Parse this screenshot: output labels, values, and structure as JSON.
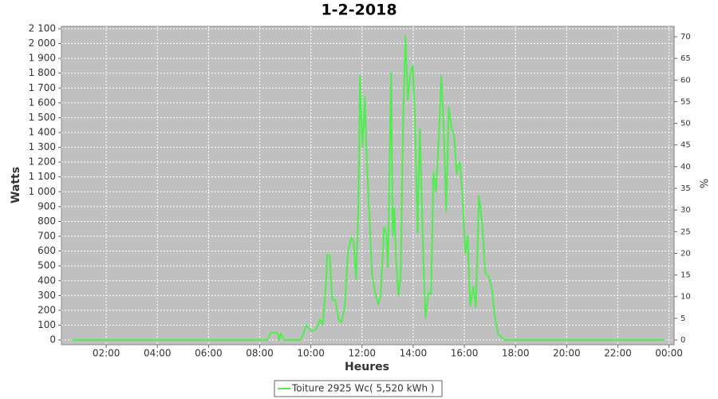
{
  "chart_data": {
    "type": "line",
    "title": "1-2-2018",
    "xlabel": "Heures",
    "ylabel": "Watts",
    "y2label": "%",
    "x": [
      0.66,
      8.3,
      8.43,
      8.68,
      8.76,
      8.83,
      8.93,
      9.61,
      9.83,
      10.02,
      10.2,
      10.36,
      10.46,
      10.58,
      10.64,
      10.74,
      10.83,
      10.95,
      11.08,
      11.2,
      11.33,
      11.45,
      11.58,
      11.67,
      11.77,
      11.86,
      11.92,
      12.02,
      12.11,
      12.17,
      12.27,
      12.39,
      12.51,
      12.64,
      12.73,
      12.86,
      12.95,
      13.01,
      13.08,
      13.14,
      13.2,
      13.26,
      13.33,
      13.42,
      13.51,
      13.61,
      13.7,
      13.79,
      13.89,
      13.98,
      14.07,
      14.17,
      14.26,
      14.39,
      14.48,
      14.6,
      14.7,
      14.79,
      14.89,
      15.01,
      15.1,
      15.2,
      15.29,
      15.39,
      15.51,
      15.6,
      15.7,
      15.82,
      15.92,
      16.04,
      16.13,
      16.23,
      16.35,
      16.45,
      16.57,
      16.7,
      16.82,
      16.95,
      17.07,
      17.2,
      17.32,
      17.44,
      17.57,
      23.84
    ],
    "series": [
      {
        "name": "Toiture 2925 Wc( 5,520 kWh )",
        "color": "#4def4d",
        "values": [
          0,
          0,
          50,
          50,
          0,
          45,
          0,
          0,
          100,
          60,
          70,
          140,
          100,
          350,
          575,
          570,
          270,
          270,
          140,
          120,
          230,
          590,
          690,
          660,
          410,
          900,
          1780,
          1300,
          1640,
          1300,
          900,
          450,
          320,
          240,
          300,
          760,
          720,
          490,
          1200,
          1800,
          700,
          890,
          560,
          300,
          420,
          1500,
          2050,
          1620,
          1800,
          1850,
          1500,
          720,
          1420,
          600,
          150,
          320,
          310,
          1130,
          1000,
          1400,
          1780,
          1400,
          870,
          1570,
          1420,
          1380,
          1120,
          1200,
          1000,
          580,
          700,
          230,
          360,
          220,
          970,
          780,
          450,
          430,
          350,
          150,
          40,
          20,
          0,
          0
        ]
      }
    ],
    "xlim": [
      0.25,
      24.2
    ],
    "xticks": [
      {
        "value": 2,
        "label": "02:00"
      },
      {
        "value": 4,
        "label": "04:00"
      },
      {
        "value": 6,
        "label": "06:00"
      },
      {
        "value": 8,
        "label": "08:00"
      },
      {
        "value": 10,
        "label": "10:00"
      },
      {
        "value": 12,
        "label": "12:00"
      },
      {
        "value": 14,
        "label": "14:00"
      },
      {
        "value": 16,
        "label": "16:00"
      },
      {
        "value": 18,
        "label": "18:00"
      },
      {
        "value": 20,
        "label": "20:00"
      },
      {
        "value": 22,
        "label": "22:00"
      },
      {
        "value": 24,
        "label": "00:00"
      }
    ],
    "ylim": [
      -32,
      2116
    ],
    "yticks": [
      0,
      100,
      200,
      300,
      400,
      500,
      600,
      700,
      800,
      900,
      {
        "value": 1000,
        "label": "1 000"
      },
      {
        "value": 1100,
        "label": "1 100"
      },
      {
        "value": 1200,
        "label": "1 200"
      },
      {
        "value": 1300,
        "label": "1 300"
      },
      {
        "value": 1400,
        "label": "1 400"
      },
      {
        "value": 1500,
        "label": "1 500"
      },
      {
        "value": 1600,
        "label": "1 600"
      },
      {
        "value": 1700,
        "label": "1 700"
      },
      {
        "value": 1800,
        "label": "1 800"
      },
      {
        "value": 1900,
        "label": "1 900"
      },
      {
        "value": 2000,
        "label": "2 000"
      },
      {
        "value": 2100,
        "label": "2 100"
      }
    ],
    "y2lim": [
      -1.1,
      72.4
    ],
    "y2ticks": [
      0,
      5,
      10,
      15,
      20,
      25,
      30,
      35,
      40,
      45,
      50,
      55,
      60,
      65,
      70
    ],
    "grid": true
  }
}
